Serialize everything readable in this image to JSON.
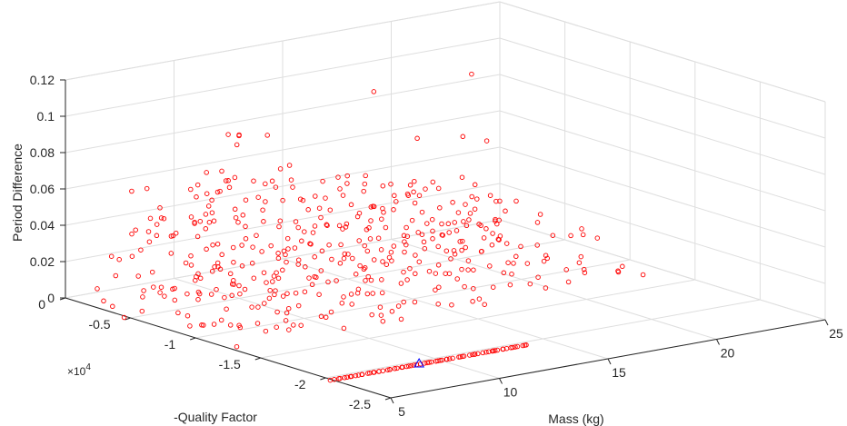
{
  "chart_data": {
    "type": "scatter",
    "projection": "3d",
    "title": "",
    "xlabel": "Mass (kg)",
    "ylabel": "-Quality Factor",
    "zlabel": "Period Difference",
    "y_multiplier_label": "×10",
    "y_multiplier_exponent": "4",
    "xlim": [
      5,
      25
    ],
    "ylim": [
      -25000,
      0
    ],
    "zlim": [
      0,
      0.12
    ],
    "x_ticks": [
      "5",
      "10",
      "15",
      "20",
      "25"
    ],
    "y_ticks": [
      "0",
      "-0.5",
      "-1",
      "-1.5",
      "-2",
      "-2.5"
    ],
    "z_ticks": [
      "0",
      "0.02",
      "0.04",
      "0.06",
      "0.08",
      "0.1",
      "0.12"
    ],
    "grid": true,
    "series_color": "#ff0000",
    "highlight_color": "#0000ff",
    "series": [
      {
        "marker": "circle",
        "color": "#ff0000",
        "points": [
          [
            5.5,
            -10000,
            0.09
          ],
          [
            6.5,
            -14000,
            0.07
          ],
          [
            7.0,
            -9000,
            0.08
          ],
          [
            8.0,
            -7500,
            0.1
          ],
          [
            8.2,
            -8000,
            0.1
          ],
          [
            9.0,
            -6500,
            0.09
          ],
          [
            10.0,
            -5000,
            0.09
          ],
          [
            12.5,
            -3000,
            0.08
          ],
          [
            18.0,
            -2000,
            0.09
          ],
          [
            22.5,
            -2000,
            0.09
          ],
          [
            6.0,
            -8000,
            0.06
          ],
          [
            7.5,
            -6000,
            0.07
          ],
          [
            9.5,
            -4500,
            0.07
          ],
          [
            11.0,
            -3000,
            0.06
          ],
          [
            13.0,
            -2000,
            0.05
          ],
          [
            20.0,
            -2000,
            0.06
          ],
          [
            21.5,
            -3000,
            0.06
          ],
          [
            23.5,
            -1500,
            0.05
          ],
          [
            15.0,
            -2500,
            0.04
          ],
          [
            17.5,
            -3500,
            0.03
          ]
        ],
        "bands": [
          {
            "z": 0.0,
            "x_from": 5,
            "x_to": 14,
            "y_from": -20500,
            "y_to": -20500,
            "count": 70
          },
          {
            "z": 0.0,
            "x_from": 5,
            "x_to": 24,
            "y_from": -13000,
            "y_to": -1000,
            "count": 90
          },
          {
            "z": 0.01,
            "x_from": 5,
            "x_to": 23,
            "y_from": -14000,
            "y_to": -1000,
            "count": 80
          },
          {
            "z": 0.02,
            "x_from": 5,
            "x_to": 23,
            "y_from": -13000,
            "y_to": -1500,
            "count": 75
          },
          {
            "z": 0.03,
            "x_from": 5,
            "x_to": 22,
            "y_from": -12000,
            "y_to": -1500,
            "count": 60
          },
          {
            "z": 0.04,
            "x_from": 5,
            "x_to": 21,
            "y_from": -11000,
            "y_to": -2000,
            "count": 45
          },
          {
            "z": 0.05,
            "x_from": 5,
            "x_to": 18,
            "y_from": -10000,
            "y_to": -3000,
            "count": 30
          },
          {
            "z": 0.06,
            "x_from": 5,
            "x_to": 15,
            "y_from": -9000,
            "y_to": -4000,
            "count": 20
          },
          {
            "z": 0.07,
            "x_from": 5,
            "x_to": 12,
            "y_from": -8000,
            "y_to": -5000,
            "count": 12
          }
        ]
      },
      {
        "marker": "triangle",
        "color": "#0000ff",
        "points": [
          [
            9.0,
            -20500,
            0.0
          ]
        ]
      }
    ]
  }
}
